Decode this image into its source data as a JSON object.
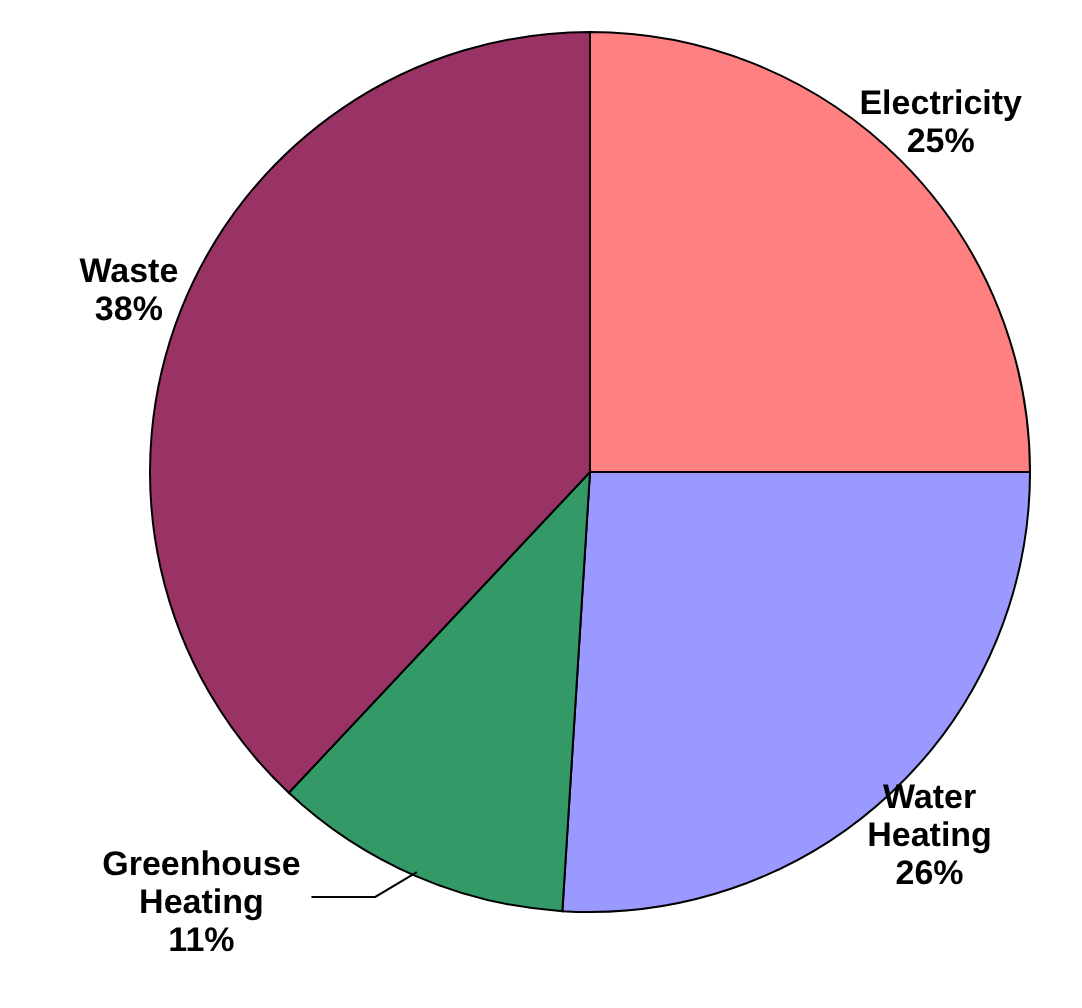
{
  "chart_data": {
    "type": "pie",
    "categories": [
      "Electricity",
      "Water Heating",
      "Greenhouse Heating",
      "Waste"
    ],
    "values": [
      25,
      26,
      11,
      38
    ],
    "colors": [
      "#ff8080",
      "#9999ff",
      "#339966",
      "#993366"
    ],
    "value_labels": [
      "25%",
      "26%",
      "11%",
      "38%"
    ]
  }
}
